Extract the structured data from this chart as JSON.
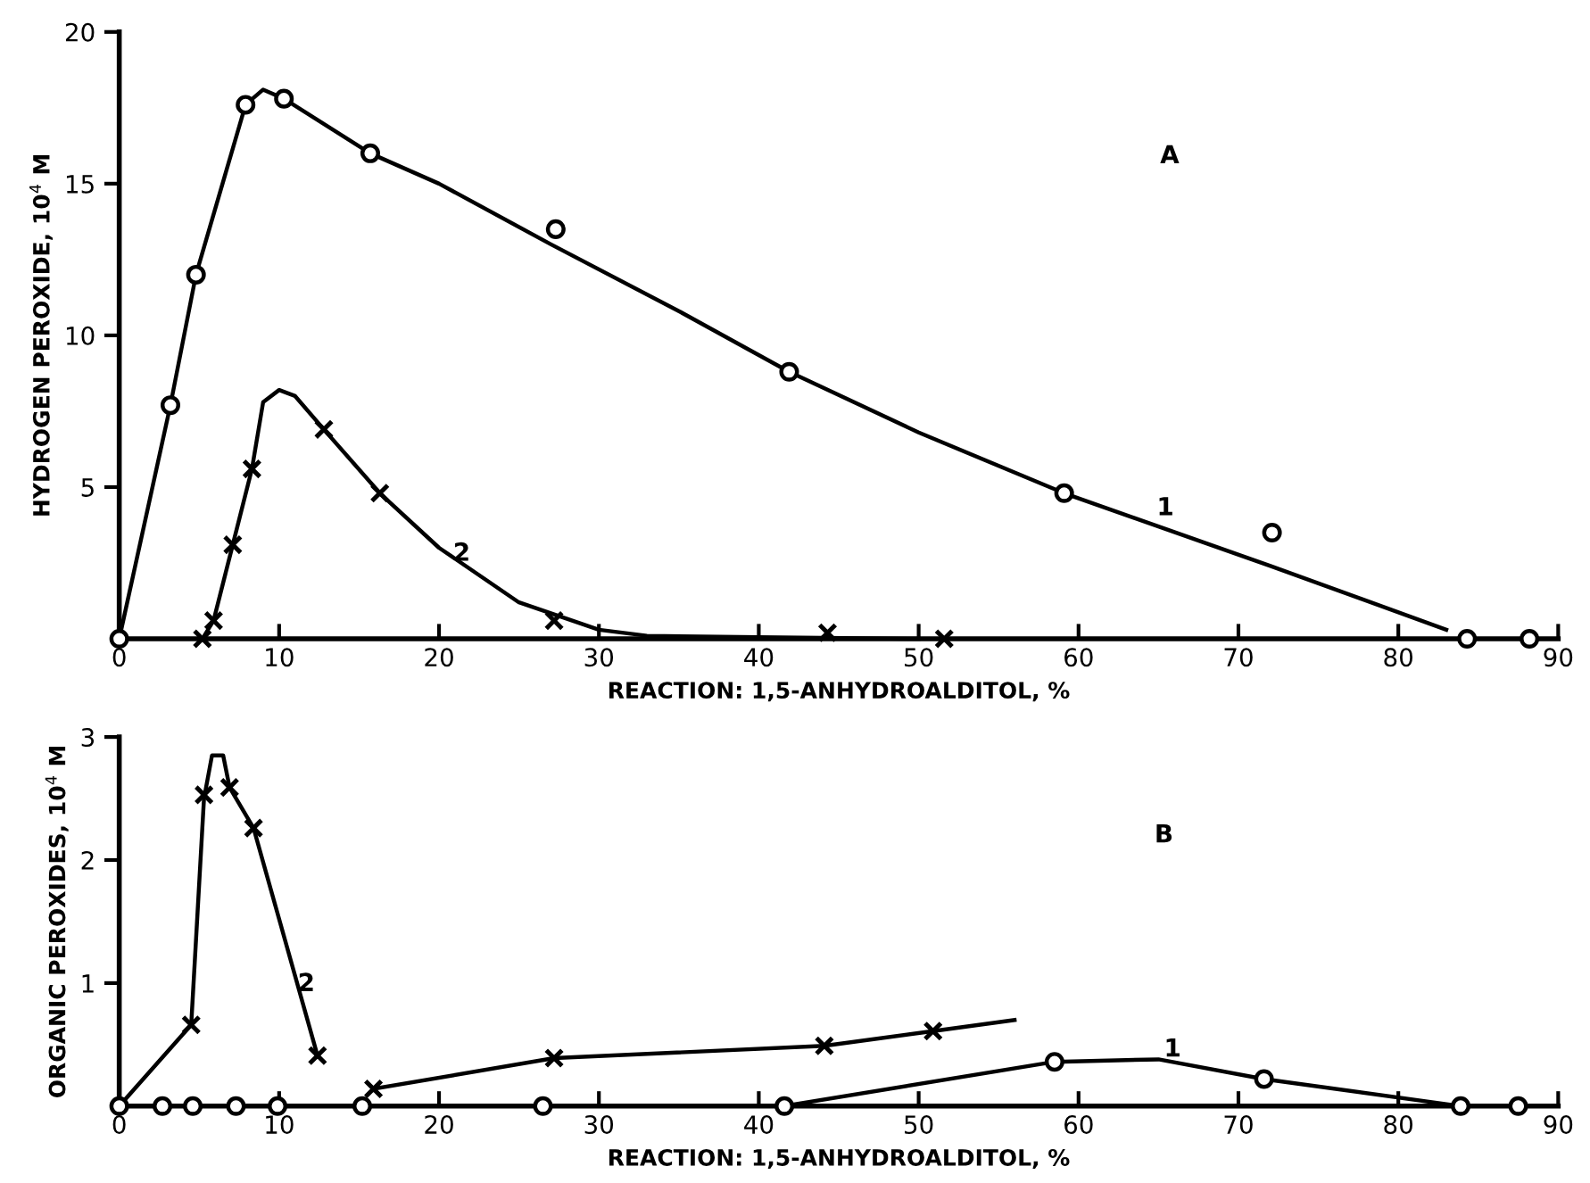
{
  "chart_data": [
    {
      "type": "line",
      "xlabel": "REACTION: 1,5-ANHYDROALDITOL, %",
      "ylabel": "HYDROGEN PEROXIDE, 10$^{4}$ M",
      "xlim": [
        0,
        90
      ],
      "xticks": [
        0,
        10,
        20,
        30,
        40,
        50,
        60,
        70,
        80,
        90
      ],
      "ylim": [
        0,
        20
      ],
      "yticks": [
        5,
        10,
        15,
        20
      ],
      "grid": false,
      "legend": false,
      "series": [
        {
          "color": "#000000",
          "marker": "none",
          "x": [
            0,
            3.2,
            4.8,
            7.9,
            9,
            10.3,
            15.7,
            20,
            27,
            35,
            41.9,
            50,
            59.1,
            65,
            72,
            83
          ],
          "values": [
            0,
            7.7,
            12.0,
            17.6,
            18.1,
            17.8,
            16.0,
            15.0,
            13.0,
            10.8,
            8.8,
            6.8,
            4.8,
            3.7,
            2.4,
            0.3
          ]
        },
        {
          "color": "#000000",
          "marker": "none",
          "x": [
            5.2,
            5.9,
            7.1,
            8.3,
            9,
            10,
            11,
            12.8,
            16.3,
            20,
            25,
            30,
            33,
            40,
            50
          ],
          "values": [
            0,
            0.6,
            3.1,
            5.6,
            7.8,
            8.2,
            8.0,
            6.9,
            4.8,
            3.0,
            1.2,
            0.3,
            0.1,
            0.05,
            0
          ]
        },
        {
          "type": "scatter",
          "color": "#000000",
          "marker": "circle",
          "x": [
            0,
            3.2,
            4.8,
            7.9,
            10.3,
            15.7,
            27.3,
            41.9,
            59.1,
            72.1,
            84.3,
            88.2
          ],
          "values": [
            0,
            7.7,
            12.0,
            17.6,
            17.8,
            16.0,
            13.5,
            8.8,
            4.8,
            3.5,
            0,
            0
          ]
        },
        {
          "type": "scatter",
          "color": "#000000",
          "marker": "cross",
          "x": [
            5.2,
            5.9,
            7.1,
            8.3,
            12.8,
            16.3,
            27.2,
            44.3,
            51.6
          ],
          "values": [
            0,
            0.6,
            3.1,
            5.6,
            6.9,
            4.8,
            0.6,
            0.2,
            0
          ]
        }
      ],
      "annotations": [
        "A",
        "1",
        "2"
      ]
    },
    {
      "type": "line",
      "xlabel": "REACTION: 1,5-ANHYDROALDITOL, %",
      "ylabel": "ORGANIC PEROXIDES, 10$^{4}$ M",
      "xlim": [
        0,
        90
      ],
      "xticks": [
        0,
        10,
        20,
        30,
        40,
        50,
        60,
        70,
        80,
        90
      ],
      "ylim": [
        0,
        3
      ],
      "yticks": [
        1,
        2,
        3
      ],
      "grid": false,
      "legend": false,
      "series": [
        {
          "color": "#000000",
          "marker": "none",
          "x": [
            0,
            4.5,
            5.3,
            5.8,
            6.5,
            6.9,
            8.4,
            12.4
          ],
          "values": [
            0,
            0.66,
            2.5,
            2.85,
            2.85,
            2.59,
            2.26,
            0.41
          ]
        },
        {
          "color": "#000000",
          "marker": "none",
          "x": [
            15.9,
            27.2,
            44.1,
            50.9,
            56
          ],
          "values": [
            0.14,
            0.39,
            0.49,
            0.61,
            0.7
          ]
        },
        {
          "color": "#000000",
          "marker": "none",
          "x": [
            41.6,
            58.5,
            65,
            71.6,
            83.9
          ],
          "values": [
            0,
            0.36,
            0.38,
            0.22,
            0
          ]
        },
        {
          "type": "scatter",
          "color": "#000000",
          "marker": "circle",
          "x": [
            0,
            2.7,
            4.6,
            7.3,
            9.9,
            15.2,
            26.5,
            41.6,
            58.5,
            71.6,
            83.9,
            87.5
          ],
          "values": [
            0,
            0,
            0,
            0,
            0,
            0,
            0,
            0,
            0.36,
            0.22,
            0,
            0
          ]
        },
        {
          "type": "scatter",
          "color": "#000000",
          "marker": "cross",
          "x": [
            4.5,
            5.3,
            6.9,
            8.4,
            12.4,
            15.9,
            27.2,
            44.1,
            50.9
          ],
          "values": [
            0.66,
            2.53,
            2.59,
            2.26,
            0.41,
            0.14,
            0.39,
            0.49,
            0.61
          ]
        }
      ],
      "annotations": [
        "B",
        "1",
        "2"
      ]
    }
  ]
}
